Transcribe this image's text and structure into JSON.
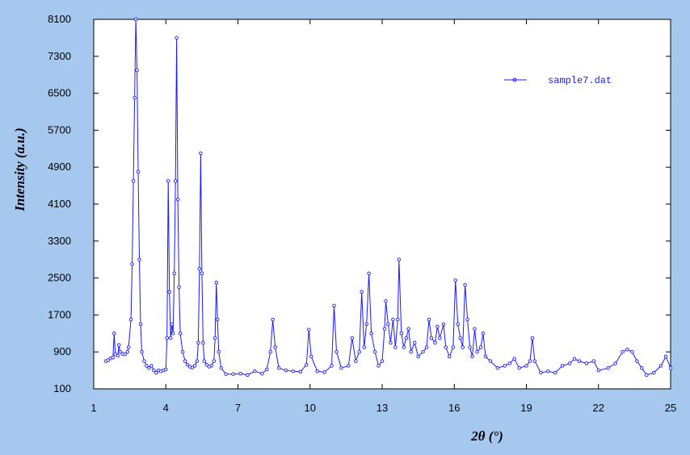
{
  "chart_data": {
    "type": "line",
    "xlabel": "2θ (°)",
    "ylabel": "Intensity (a.u.)",
    "xlim": [
      1,
      25
    ],
    "ylim": [
      100,
      8100
    ],
    "x_ticks": [
      "1",
      "4",
      "7",
      "10",
      "13",
      "16",
      "19",
      "22",
      "25"
    ],
    "y_ticks": [
      "100",
      "900",
      "1700",
      "2500",
      "3300",
      "4100",
      "4900",
      "5700",
      "6500",
      "7300",
      "8100"
    ],
    "grid": false,
    "legend_position": "top-right",
    "colors": {
      "series": "#1a1aff",
      "page_background": "#a6c8ee",
      "plot_background": "#ffffff"
    },
    "series": [
      {
        "name": "sample7.dat",
        "marker": "circle",
        "points": [
          [
            1.5,
            700
          ],
          [
            1.6,
            720
          ],
          [
            1.7,
            760
          ],
          [
            1.8,
            780
          ],
          [
            1.85,
            1300
          ],
          [
            1.9,
            850
          ],
          [
            2.0,
            820
          ],
          [
            2.05,
            1050
          ],
          [
            2.1,
            900
          ],
          [
            2.2,
            860
          ],
          [
            2.3,
            850
          ],
          [
            2.4,
            900
          ],
          [
            2.45,
            1000
          ],
          [
            2.55,
            1600
          ],
          [
            2.6,
            2800
          ],
          [
            2.65,
            4600
          ],
          [
            2.7,
            6400
          ],
          [
            2.75,
            8100
          ],
          [
            2.8,
            7000
          ],
          [
            2.85,
            4800
          ],
          [
            2.9,
            2900
          ],
          [
            2.95,
            1500
          ],
          [
            3.0,
            900
          ],
          [
            3.1,
            700
          ],
          [
            3.2,
            600
          ],
          [
            3.3,
            550
          ],
          [
            3.4,
            600
          ],
          [
            3.5,
            500
          ],
          [
            3.6,
            450
          ],
          [
            3.7,
            500
          ],
          [
            3.8,
            480
          ],
          [
            3.9,
            500
          ],
          [
            4.0,
            520
          ],
          [
            4.05,
            1200
          ],
          [
            4.1,
            4600
          ],
          [
            4.15,
            2200
          ],
          [
            4.2,
            1200
          ],
          [
            4.25,
            1500
          ],
          [
            4.3,
            1300
          ],
          [
            4.35,
            2600
          ],
          [
            4.4,
            4600
          ],
          [
            4.45,
            7700
          ],
          [
            4.5,
            4200
          ],
          [
            4.55,
            2300
          ],
          [
            4.6,
            1300
          ],
          [
            4.7,
            900
          ],
          [
            4.8,
            700
          ],
          [
            4.9,
            620
          ],
          [
            5.0,
            580
          ],
          [
            5.1,
            560
          ],
          [
            5.2,
            600
          ],
          [
            5.3,
            700
          ],
          [
            5.35,
            1100
          ],
          [
            5.4,
            2700
          ],
          [
            5.45,
            5200
          ],
          [
            5.5,
            2600
          ],
          [
            5.55,
            1100
          ],
          [
            5.6,
            700
          ],
          [
            5.7,
            620
          ],
          [
            5.8,
            580
          ],
          [
            5.9,
            600
          ],
          [
            6.0,
            700
          ],
          [
            6.05,
            1200
          ],
          [
            6.1,
            2400
          ],
          [
            6.15,
            1600
          ],
          [
            6.2,
            900
          ],
          [
            6.3,
            550
          ],
          [
            6.5,
            420
          ],
          [
            6.8,
            420
          ],
          [
            7.1,
            430
          ],
          [
            7.4,
            400
          ],
          [
            7.7,
            480
          ],
          [
            8.0,
            430
          ],
          [
            8.2,
            520
          ],
          [
            8.35,
            900
          ],
          [
            8.45,
            1600
          ],
          [
            8.55,
            1000
          ],
          [
            8.7,
            550
          ],
          [
            9.0,
            500
          ],
          [
            9.3,
            480
          ],
          [
            9.6,
            470
          ],
          [
            9.85,
            620
          ],
          [
            9.95,
            1380
          ],
          [
            10.05,
            800
          ],
          [
            10.3,
            480
          ],
          [
            10.6,
            460
          ],
          [
            10.9,
            600
          ],
          [
            11.0,
            1900
          ],
          [
            11.1,
            900
          ],
          [
            11.3,
            550
          ],
          [
            11.6,
            600
          ],
          [
            11.75,
            1200
          ],
          [
            11.9,
            700
          ],
          [
            12.05,
            900
          ],
          [
            12.15,
            2200
          ],
          [
            12.25,
            1000
          ],
          [
            12.35,
            1500
          ],
          [
            12.45,
            2600
          ],
          [
            12.55,
            1300
          ],
          [
            12.7,
            900
          ],
          [
            12.85,
            600
          ],
          [
            13.0,
            700
          ],
          [
            13.1,
            1400
          ],
          [
            13.15,
            2000
          ],
          [
            13.25,
            1500
          ],
          [
            13.35,
            1100
          ],
          [
            13.45,
            1600
          ],
          [
            13.55,
            1000
          ],
          [
            13.65,
            1600
          ],
          [
            13.7,
            2900
          ],
          [
            13.8,
            1300
          ],
          [
            13.9,
            1000
          ],
          [
            14.0,
            1200
          ],
          [
            14.1,
            1400
          ],
          [
            14.2,
            900
          ],
          [
            14.35,
            1100
          ],
          [
            14.5,
            800
          ],
          [
            14.7,
            900
          ],
          [
            14.85,
            1000
          ],
          [
            14.95,
            1600
          ],
          [
            15.05,
            1200
          ],
          [
            15.2,
            1100
          ],
          [
            15.3,
            1450
          ],
          [
            15.4,
            1200
          ],
          [
            15.55,
            1500
          ],
          [
            15.65,
            1000
          ],
          [
            15.8,
            800
          ],
          [
            15.95,
            1000
          ],
          [
            16.05,
            2450
          ],
          [
            16.15,
            1500
          ],
          [
            16.25,
            1200
          ],
          [
            16.35,
            1000
          ],
          [
            16.45,
            2350
          ],
          [
            16.55,
            1600
          ],
          [
            16.65,
            1000
          ],
          [
            16.75,
            800
          ],
          [
            16.85,
            1400
          ],
          [
            16.95,
            900
          ],
          [
            17.1,
            1000
          ],
          [
            17.2,
            1300
          ],
          [
            17.3,
            800
          ],
          [
            17.5,
            700
          ],
          [
            17.8,
            550
          ],
          [
            18.1,
            600
          ],
          [
            18.3,
            650
          ],
          [
            18.5,
            750
          ],
          [
            18.7,
            550
          ],
          [
            19.0,
            600
          ],
          [
            19.15,
            700
          ],
          [
            19.25,
            1200
          ],
          [
            19.35,
            700
          ],
          [
            19.6,
            450
          ],
          [
            19.9,
            480
          ],
          [
            20.2,
            450
          ],
          [
            20.5,
            600
          ],
          [
            20.8,
            650
          ],
          [
            21.0,
            750
          ],
          [
            21.2,
            700
          ],
          [
            21.5,
            650
          ],
          [
            21.8,
            700
          ],
          [
            22.0,
            500
          ],
          [
            22.4,
            550
          ],
          [
            22.7,
            650
          ],
          [
            23.0,
            900
          ],
          [
            23.2,
            950
          ],
          [
            23.4,
            900
          ],
          [
            23.6,
            700
          ],
          [
            23.8,
            550
          ],
          [
            24.0,
            400
          ],
          [
            24.3,
            450
          ],
          [
            24.6,
            600
          ],
          [
            24.8,
            800
          ],
          [
            25.0,
            550
          ]
        ]
      }
    ]
  }
}
